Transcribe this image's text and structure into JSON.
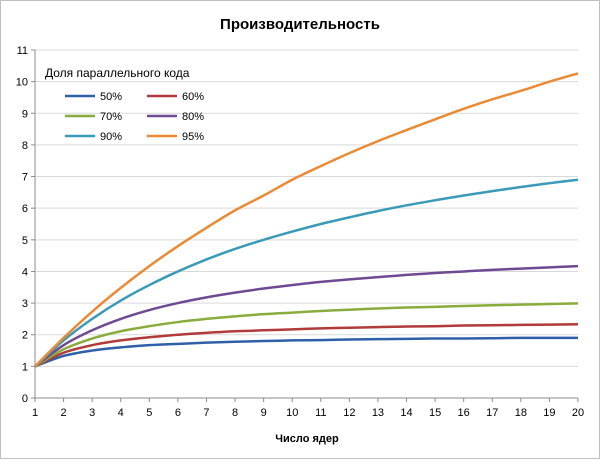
{
  "chart_data": {
    "type": "line",
    "title": "Производительность",
    "xlabel": "Число ядер",
    "ylabel": "",
    "x": [
      1,
      2,
      3,
      4,
      5,
      6,
      7,
      8,
      9,
      10,
      11,
      12,
      13,
      14,
      15,
      16,
      17,
      18,
      19,
      20
    ],
    "ylim": [
      0,
      11
    ],
    "yticks": [
      0,
      1,
      2,
      3,
      4,
      5,
      6,
      7,
      8,
      9,
      10,
      11
    ],
    "grid": true,
    "legend_title": "Доля параллельного кода",
    "legend_position": "top-left",
    "series": [
      {
        "name": "50%",
        "color": "#2e5fa8",
        "values": [
          1,
          1.33,
          1.5,
          1.6,
          1.67,
          1.71,
          1.75,
          1.78,
          1.8,
          1.82,
          1.83,
          1.85,
          1.86,
          1.87,
          1.88,
          1.88,
          1.89,
          1.9,
          1.9,
          1.9
        ]
      },
      {
        "name": "60%",
        "color": "#b13a3a",
        "values": [
          1,
          1.43,
          1.67,
          1.82,
          1.92,
          2.0,
          2.06,
          2.11,
          2.14,
          2.17,
          2.2,
          2.22,
          2.24,
          2.26,
          2.27,
          2.29,
          2.3,
          2.31,
          2.32,
          2.33
        ]
      },
      {
        "name": "70%",
        "color": "#8aac3c",
        "values": [
          1,
          1.54,
          1.88,
          2.11,
          2.27,
          2.4,
          2.5,
          2.58,
          2.65,
          2.7,
          2.75,
          2.79,
          2.83,
          2.86,
          2.88,
          2.91,
          2.93,
          2.95,
          2.97,
          2.99
        ]
      },
      {
        "name": "80%",
        "color": "#6e4a93",
        "values": [
          1,
          1.67,
          2.14,
          2.5,
          2.78,
          3.0,
          3.18,
          3.33,
          3.46,
          3.57,
          3.67,
          3.75,
          3.82,
          3.89,
          3.95,
          4.0,
          4.05,
          4.09,
          4.13,
          4.17
        ]
      },
      {
        "name": "90%",
        "color": "#3a9ab8",
        "values": [
          1,
          1.82,
          2.5,
          3.08,
          3.57,
          4.0,
          4.38,
          4.71,
          5.0,
          5.26,
          5.5,
          5.71,
          5.91,
          6.09,
          6.25,
          6.4,
          6.54,
          6.67,
          6.79,
          6.9
        ]
      },
      {
        "name": "95%",
        "color": "#ea8a35",
        "values": [
          1,
          1.9,
          2.73,
          3.48,
          4.17,
          4.8,
          5.38,
          5.93,
          6.4,
          6.9,
          7.33,
          7.74,
          8.12,
          8.47,
          8.81,
          9.14,
          9.44,
          9.71,
          10.0,
          10.26
        ]
      }
    ]
  }
}
